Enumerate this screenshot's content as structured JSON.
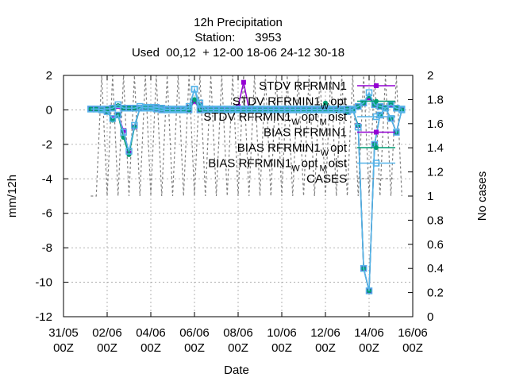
{
  "chart_data": {
    "type": "line",
    "title_lines": [
      "12h Precipitation",
      "Station:      3953",
      "Used  00,12  + 12-00 18-06 24-12 30-18"
    ],
    "xlabel": "Date",
    "ylabel": "mm/12h",
    "y2label": "No cases",
    "xlim": [
      0,
      16
    ],
    "ylim": [
      -12,
      2
    ],
    "y2lim": [
      0,
      2
    ],
    "x_ticks": [
      {
        "x": 0,
        "line1": "31/05",
        "line2": "00Z"
      },
      {
        "x": 2,
        "line1": "02/06",
        "line2": "00Z"
      },
      {
        "x": 4,
        "line1": "04/06",
        "line2": "00Z"
      },
      {
        "x": 6,
        "line1": "06/06",
        "line2": "00Z"
      },
      {
        "x": 8,
        "line1": "08/06",
        "line2": "00Z"
      },
      {
        "x": 10,
        "line1": "10/06",
        "line2": "00Z"
      },
      {
        "x": 12,
        "line1": "12/06",
        "line2": "00Z"
      },
      {
        "x": 14,
        "line1": "14/06",
        "line2": "00Z"
      },
      {
        "x": 16,
        "line1": "16/06",
        "line2": "00Z"
      }
    ],
    "y_ticks": [
      2,
      0,
      -2,
      -4,
      -6,
      -8,
      -10,
      -12
    ],
    "y2_ticks": [
      "2",
      "1.8",
      "1.6",
      "1.4",
      "1.2",
      "1",
      "0.8",
      "0.6",
      "0.4",
      "0.2",
      "0"
    ],
    "grid": true,
    "legend_position": "top-right",
    "legend": [
      {
        "text": "STDV RFRMIN1",
        "sub": "",
        "sub2": ""
      },
      {
        "text": "STDV RFRMIN1",
        "sub": "W",
        "sub2": "opt"
      },
      {
        "text": "STDV RFRMIN1",
        "sub": "W",
        "sub2": "opt",
        "sub3": "M",
        "sub4": "oist"
      },
      {
        "text": "BIAS RFRMIN1",
        "sub": "",
        "sub2": ""
      },
      {
        "text": "BIAS RFRMIN1",
        "sub": "W",
        "sub2": "opt"
      },
      {
        "text": "BIAS RFRMIN1",
        "sub": "W",
        "sub2": "opt",
        "sub3": "M",
        "sub4": "oist"
      },
      {
        "text": "CASES",
        "sub": "",
        "sub2": ""
      }
    ],
    "colors": {
      "stdv": "#9400d3",
      "stdv_wopt": "#009e73",
      "stdv_wopt_moist": "#56b4e9",
      "bias": "#9400d3",
      "bias_wopt": "#009e73",
      "bias_wopt_moist": "#56b4e9",
      "cases": "#808080"
    },
    "series": [
      {
        "name": "STDV RFRMIN1",
        "x": [
          1.25,
          1.5,
          1.75,
          2.0,
          2.25,
          2.5,
          2.75,
          3.0,
          3.25,
          3.5,
          3.75,
          4.0,
          4.25,
          4.5,
          4.75,
          5.0,
          5.25,
          5.5,
          5.75,
          6.0,
          6.25,
          6.5,
          6.75,
          7.0,
          7.25,
          7.5,
          7.75,
          8.0,
          8.25,
          8.5,
          8.75,
          9.0,
          9.25,
          9.5,
          9.75,
          10.0,
          10.25,
          10.5,
          10.75,
          11.0,
          11.25,
          11.5,
          11.75,
          12.0,
          12.25,
          12.5,
          12.75,
          13.0,
          13.25,
          13.5,
          13.75,
          14.0,
          14.25,
          14.5,
          14.75,
          15.0,
          15.25,
          15.5
        ],
        "values": [
          0.05,
          0.05,
          0.05,
          0.05,
          0.1,
          0.2,
          0.1,
          0.1,
          0.1,
          0.15,
          0.1,
          0.15,
          0.15,
          0.1,
          0.05,
          0.05,
          0.05,
          0.05,
          0.15,
          0.5,
          0.3,
          0.05,
          0.05,
          0.05,
          0.05,
          0.05,
          0.05,
          0.2,
          1.6,
          0.05,
          0.05,
          0.05,
          0.05,
          0.05,
          0.05,
          0.05,
          0.05,
          0.05,
          0.05,
          0.05,
          0.05,
          0.05,
          0.05,
          0.05,
          0.05,
          0.05,
          0.05,
          0.05,
          0.05,
          0.2,
          0.4,
          0.7,
          0.3,
          0.2,
          0.1,
          0.3,
          0.1,
          0.05
        ]
      },
      {
        "name": "STDV RFRMIN1 W opt",
        "x": [
          1.25,
          1.5,
          1.75,
          2.0,
          2.25,
          2.5,
          2.75,
          3.0,
          3.25,
          3.5,
          3.75,
          4.0,
          4.25,
          4.5,
          4.75,
          5.0,
          5.25,
          5.5,
          5.75,
          6.0,
          6.25,
          6.5,
          6.75,
          7.0,
          7.25,
          7.5,
          7.75,
          8.0,
          8.25,
          8.5,
          8.75,
          9.0,
          9.25,
          9.5,
          9.75,
          10.0,
          10.25,
          10.5,
          10.75,
          11.0,
          11.25,
          11.5,
          11.75,
          12.0,
          12.25,
          12.5,
          12.75,
          13.0,
          13.25,
          13.5,
          13.75,
          14.0,
          14.25,
          14.5,
          14.75,
          15.0,
          15.25,
          15.5
        ],
        "values": [
          0.05,
          0.05,
          0.05,
          0.05,
          0.1,
          0.25,
          0.1,
          0.1,
          0.1,
          0.15,
          0.1,
          0.15,
          0.15,
          0.1,
          0.05,
          0.05,
          0.05,
          0.05,
          0.15,
          0.6,
          0.3,
          0.05,
          0.05,
          0.05,
          0.05,
          0.05,
          0.05,
          0.05,
          0.05,
          0.05,
          0.05,
          0.05,
          0.05,
          0.05,
          0.05,
          0.05,
          0.05,
          0.05,
          0.05,
          0.05,
          0.05,
          0.05,
          0.05,
          0.4,
          0.05,
          0.05,
          0.05,
          0.05,
          0.05,
          0.2,
          0.4,
          0.8,
          0.3,
          0.2,
          0.1,
          0.35,
          0.1,
          0.05
        ]
      },
      {
        "name": "STDV RFRMIN1 W opt M oist",
        "x": [
          1.25,
          1.5,
          1.75,
          2.0,
          2.25,
          2.5,
          2.75,
          3.0,
          3.25,
          3.5,
          3.75,
          4.0,
          4.25,
          4.5,
          4.75,
          5.0,
          5.25,
          5.5,
          5.75,
          6.0,
          6.25,
          6.5,
          6.75,
          7.0,
          7.25,
          7.5,
          7.75,
          8.0,
          8.25,
          8.5,
          8.75,
          9.0,
          9.25,
          9.5,
          9.75,
          10.0,
          10.25,
          10.5,
          10.75,
          11.0,
          11.25,
          11.5,
          11.75,
          12.0,
          12.25,
          12.5,
          12.75,
          13.0,
          13.25,
          13.5,
          13.75,
          14.0,
          14.25,
          14.5,
          14.75,
          15.0,
          15.25,
          15.5
        ],
        "values": [
          0.05,
          0.05,
          0.05,
          0.05,
          0.1,
          0.3,
          0.1,
          0.1,
          0.1,
          0.2,
          0.1,
          0.15,
          0.15,
          0.1,
          0.05,
          0.05,
          0.05,
          0.05,
          0.2,
          1.2,
          0.4,
          0.05,
          0.05,
          0.05,
          0.05,
          0.05,
          0.05,
          0.05,
          0.05,
          0.05,
          0.05,
          0.05,
          0.05,
          0.05,
          0.05,
          0.05,
          0.05,
          0.05,
          0.05,
          0.05,
          0.05,
          0.05,
          0.05,
          0.05,
          0.05,
          0.05,
          0.05,
          0.05,
          0.05,
          0.2,
          0.4,
          1.0,
          0.3,
          0.2,
          0.1,
          0.3,
          0.1,
          0.05
        ]
      },
      {
        "name": "BIAS RFRMIN1",
        "x": [
          1.25,
          1.5,
          1.75,
          2.0,
          2.25,
          2.5,
          2.75,
          3.0,
          3.25,
          3.5,
          3.75,
          4.0,
          4.25,
          4.5,
          4.75,
          5.0,
          5.25,
          5.5,
          5.75,
          6.0,
          6.25,
          6.5,
          6.75,
          7.0,
          7.25,
          7.5,
          7.75,
          8.0,
          8.25,
          8.5,
          8.75,
          9.0,
          9.25,
          9.5,
          9.75,
          10.0,
          10.25,
          10.5,
          10.75,
          11.0,
          11.25,
          11.5,
          11.75,
          12.0,
          12.25,
          12.5,
          12.75,
          13.0,
          13.25,
          13.5,
          13.75,
          14.0,
          14.25,
          14.5,
          14.75,
          15.0,
          15.25,
          15.5
        ],
        "values": [
          0.05,
          0.05,
          0.0,
          -0.1,
          -0.5,
          -0.3,
          -1.2,
          -2.5,
          -1.0,
          0.1,
          0.15,
          0.1,
          0.05,
          0.0,
          0.0,
          0.0,
          0.0,
          0.0,
          0.0,
          0.5,
          0.0,
          0.0,
          0.0,
          0.0,
          0.0,
          0.0,
          0.0,
          0.0,
          0.0,
          0.0,
          0.0,
          0.0,
          0.0,
          0.0,
          0.0,
          0.0,
          0.0,
          0.0,
          0.0,
          0.0,
          0.0,
          0.0,
          0.0,
          0.0,
          0.0,
          0.0,
          0.0,
          -0.1,
          0.0,
          -0.9,
          -9.2,
          -10.5,
          -2.0,
          -0.3,
          0.1,
          -0.5,
          -1.3,
          0.0
        ]
      },
      {
        "name": "BIAS RFRMIN1 W opt",
        "x": [
          1.25,
          1.5,
          1.75,
          2.0,
          2.25,
          2.5,
          2.75,
          3.0,
          3.25,
          3.5,
          3.75,
          4.0,
          4.25,
          4.5,
          4.75,
          5.0,
          5.25,
          5.5,
          5.75,
          6.0,
          6.25,
          6.5,
          6.75,
          7.0,
          7.25,
          7.5,
          7.75,
          8.0,
          8.25,
          8.5,
          8.75,
          9.0,
          9.25,
          9.5,
          9.75,
          10.0,
          10.25,
          10.5,
          10.75,
          11.0,
          11.25,
          11.5,
          11.75,
          12.0,
          12.25,
          12.5,
          12.75,
          13.0,
          13.25,
          13.5,
          13.75,
          14.0,
          14.25,
          14.5,
          14.75,
          15.0,
          15.25,
          15.5
        ],
        "values": [
          0.05,
          0.05,
          0.0,
          -0.1,
          -0.6,
          -0.3,
          -1.6,
          -2.6,
          -1.0,
          0.1,
          0.15,
          0.1,
          0.05,
          0.0,
          0.0,
          0.0,
          0.0,
          0.0,
          0.0,
          0.6,
          0.0,
          0.0,
          0.0,
          0.0,
          0.0,
          0.0,
          0.0,
          0.0,
          0.0,
          0.0,
          0.0,
          0.0,
          0.0,
          0.0,
          0.0,
          0.0,
          0.0,
          0.0,
          0.0,
          0.0,
          0.0,
          0.0,
          0.0,
          0.0,
          0.0,
          0.0,
          0.0,
          -0.1,
          0.0,
          -0.9,
          -9.2,
          -10.5,
          -2.0,
          -0.3,
          0.1,
          -0.5,
          -1.3,
          0.0
        ]
      },
      {
        "name": "BIAS RFRMIN1 W opt M oist",
        "x": [
          1.25,
          1.5,
          1.75,
          2.0,
          2.25,
          2.5,
          2.75,
          3.0,
          3.25,
          3.5,
          3.75,
          4.0,
          4.25,
          4.5,
          4.75,
          5.0,
          5.25,
          5.5,
          5.75,
          6.0,
          6.25,
          6.5,
          6.75,
          7.0,
          7.25,
          7.5,
          7.75,
          8.0,
          8.25,
          8.5,
          8.75,
          9.0,
          9.25,
          9.5,
          9.75,
          10.0,
          10.25,
          10.5,
          10.75,
          11.0,
          11.25,
          11.5,
          11.75,
          12.0,
          12.25,
          12.5,
          12.75,
          13.0,
          13.25,
          13.5,
          13.75,
          14.0,
          14.25,
          14.5,
          14.75,
          15.0,
          15.25,
          15.5
        ],
        "values": [
          0.05,
          0.05,
          0.0,
          -0.1,
          -0.5,
          -0.3,
          -1.3,
          -2.4,
          -0.9,
          0.1,
          0.15,
          0.1,
          0.05,
          0.0,
          0.0,
          0.0,
          0.0,
          0.0,
          0.0,
          1.2,
          0.0,
          0.0,
          0.0,
          0.0,
          0.0,
          0.0,
          0.0,
          0.0,
          0.0,
          0.0,
          0.0,
          0.0,
          0.0,
          0.0,
          0.0,
          0.0,
          0.0,
          0.0,
          0.0,
          0.0,
          0.0,
          0.0,
          0.0,
          0.0,
          0.0,
          0.0,
          0.0,
          -0.1,
          0.0,
          -1.0,
          -9.2,
          -10.5,
          -2.0,
          -0.3,
          0.1,
          -0.5,
          -1.3,
          0.0
        ]
      },
      {
        "name": "CASES",
        "axis": "y2",
        "x": [
          1.25,
          1.5,
          1.75,
          2.0,
          2.25,
          2.5,
          2.75,
          3.0,
          3.25,
          3.5,
          3.75,
          4.0,
          4.25,
          4.5,
          4.75,
          5.0,
          5.25,
          5.5,
          5.75,
          6.0,
          6.25,
          6.5,
          6.75,
          7.0,
          7.25,
          7.5,
          7.75,
          8.0,
          8.25,
          8.5,
          8.75,
          9.0,
          9.25,
          9.5,
          9.75,
          10.0,
          10.25,
          10.5,
          10.75,
          11.0,
          11.25,
          11.5,
          11.75,
          12.0,
          12.25,
          12.5,
          12.75,
          13.0,
          13.25,
          13.5,
          13.75,
          14.0,
          14.25,
          14.5,
          14.75,
          15.0,
          15.25,
          15.5
        ],
        "values": [
          1,
          1,
          2,
          1,
          2,
          1,
          2,
          1,
          2,
          1,
          2,
          1,
          2,
          1,
          2,
          1,
          2,
          1,
          2,
          1,
          2,
          1,
          2,
          1,
          2,
          1,
          2,
          1,
          2,
          1,
          2,
          1,
          2,
          1,
          2,
          1,
          2,
          1,
          2,
          1,
          2,
          1,
          2,
          1,
          2,
          1,
          2,
          1,
          2,
          1,
          2,
          1,
          2,
          1,
          2,
          1,
          2,
          1
        ]
      }
    ]
  }
}
